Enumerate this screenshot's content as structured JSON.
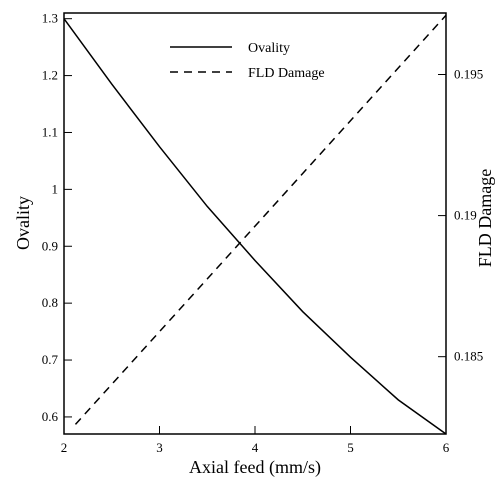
{
  "chart_data": {
    "type": "line",
    "xlabel": "Axial feed (mm/s)",
    "ylabel_left": "Ovality",
    "ylabel_right": "FLD Damage",
    "xlim": [
      2,
      6
    ],
    "ylim_left": [
      0.57,
      1.31
    ],
    "ylim_right": [
      0.18226,
      0.19718
    ],
    "x_ticks": [
      "2",
      "3",
      "4",
      "5",
      "6"
    ],
    "y_left_ticks": [
      "0.6",
      "0.7",
      "0.8",
      "0.9",
      "1",
      "1.1",
      "1.2",
      "1.3"
    ],
    "y_right_ticks": [
      "0.185",
      "0.19",
      "0.195"
    ],
    "grid": false,
    "legend": "top-center",
    "series": [
      {
        "name": "Ovality",
        "axis": "left",
        "style": "solid",
        "x": [
          2.0,
          2.5,
          3.0,
          3.5,
          4.0,
          4.5,
          5.0,
          5.5,
          6.0
        ],
        "y": [
          1.3,
          1.185,
          1.075,
          0.97,
          0.875,
          0.785,
          0.705,
          0.63,
          0.57
        ]
      },
      {
        "name": "FLD Damage",
        "axis": "right",
        "style": "dashed",
        "x": [
          2.12,
          6.0
        ],
        "y": [
          0.1826,
          0.1971
        ]
      }
    ]
  }
}
